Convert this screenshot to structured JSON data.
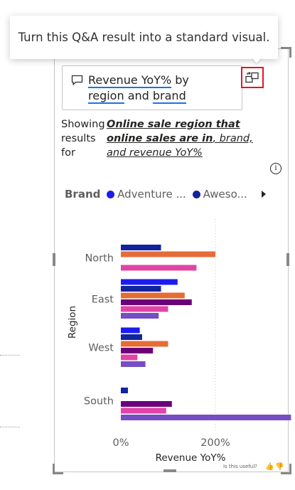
{
  "tooltip": {
    "text": "Turn this Q&A result into a standard visual."
  },
  "qna": {
    "word1": "Revenue YoY%",
    "word2": " by",
    "word3": "region",
    "word4": " and ",
    "word5": "brand"
  },
  "showing": {
    "label_line1": "Showing",
    "label_line2": "results",
    "label_line3": "for",
    "desc_line1": "Online sale region that",
    "desc_line2_bold": "online sales are in",
    "desc_line2_rest": ", brand,",
    "desc_line3": "and revenue YoY%"
  },
  "info_icon": "i",
  "legend": {
    "title": "Brand",
    "items": [
      {
        "label": "Adventure ...",
        "color": "#1c1cf0"
      },
      {
        "label": "Aweso...",
        "color": "#12239e"
      }
    ]
  },
  "feedback": {
    "text": "Is this useful?"
  },
  "chart_data": {
    "type": "bar",
    "orientation": "horizontal",
    "categories": [
      "North",
      "East",
      "West",
      "South"
    ],
    "xlabel": "Revenue YoY%",
    "ylabel": "Region",
    "xticks": [
      "0%",
      "200%"
    ],
    "xlim": [
      -5,
      370
    ],
    "series_colors": [
      "#1c1cf0",
      "#12239e",
      "#e66c37",
      "#6b007b",
      "#e044a7",
      "#744ec2"
    ],
    "bars": {
      "North": [
        null,
        85,
        200,
        null,
        160,
        null
      ],
      "East": [
        120,
        85,
        135,
        150,
        100,
        80
      ],
      "West": [
        40,
        45,
        100,
        68,
        35,
        52
      ],
      "South": [
        null,
        15,
        null,
        108,
        96,
        360
      ]
    }
  }
}
